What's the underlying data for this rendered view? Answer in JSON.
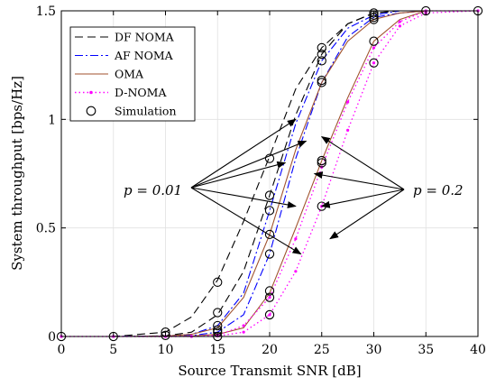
{
  "chart_data": {
    "type": "line",
    "xlabel": "Source Transmit SNR [dB]",
    "ylabel": "System throughput [bps/Hz]",
    "xlim": [
      0,
      40
    ],
    "ylim": [
      0,
      1.5
    ],
    "xticks": [
      0,
      5,
      10,
      15,
      20,
      25,
      30,
      35,
      40
    ],
    "yticks": [
      0,
      0.5,
      1,
      1.5
    ],
    "ytick_labels": [
      "0",
      "0.5",
      "1",
      "1.5"
    ],
    "grid": true,
    "legend_position": "top-left",
    "legend": [
      {
        "label": "DF NOMA",
        "style": "dashed",
        "color": "#000000"
      },
      {
        "label": "AF NOMA",
        "style": "dashdot",
        "color": "#0000ff"
      },
      {
        "label": "OMA",
        "style": "solid",
        "color": "#a0522d"
      },
      {
        "label": "D-NOMA",
        "style": "dotted",
        "color": "#ff00ff"
      },
      {
        "label": "Simulation",
        "style": "marker-circle",
        "color": "#000000"
      }
    ],
    "x": [
      0,
      5,
      10,
      12.5,
      15,
      17.5,
      20,
      22.5,
      25,
      27.5,
      30,
      32.5,
      35,
      40
    ],
    "series": [
      {
        "name": "DF NOMA",
        "group": "p = 0.01",
        "style": "dashed",
        "color": "#000000",
        "values": [
          0,
          0,
          0.02,
          0.09,
          0.26,
          0.53,
          0.83,
          1.14,
          1.33,
          1.44,
          1.49,
          1.5,
          1.5,
          1.5
        ]
      },
      {
        "name": "DF NOMA",
        "group": "p = 0.2",
        "style": "dashed",
        "color": "#000000",
        "values": [
          0,
          0,
          0.003,
          0.02,
          0.1,
          0.3,
          0.65,
          1.02,
          1.3,
          1.44,
          1.49,
          1.5,
          1.5,
          1.5
        ]
      },
      {
        "name": "AF NOMA",
        "group": "p = 0.01",
        "style": "dashdot",
        "color": "#0000ff",
        "values": [
          0,
          0,
          0.002,
          0.01,
          0.05,
          0.2,
          0.58,
          0.98,
          1.27,
          1.42,
          1.48,
          1.5,
          1.5,
          1.5
        ]
      },
      {
        "name": "AF NOMA",
        "group": "p = 0.2",
        "style": "dashdot",
        "color": "#0000ff",
        "values": [
          0,
          0,
          0.001,
          0.004,
          0.02,
          0.1,
          0.38,
          0.82,
          1.17,
          1.38,
          1.47,
          1.49,
          1.5,
          1.5
        ]
      },
      {
        "name": "OMA",
        "group": "p = 0.01",
        "style": "solid",
        "color": "#a0522d",
        "values": [
          0,
          0,
          0.002,
          0.01,
          0.04,
          0.18,
          0.47,
          0.86,
          1.17,
          1.36,
          1.46,
          1.49,
          1.5,
          1.5
        ]
      },
      {
        "name": "OMA",
        "group": "p = 0.2",
        "style": "solid",
        "color": "#a0522d",
        "values": [
          0,
          0,
          0,
          0.002,
          0.01,
          0.04,
          0.2,
          0.5,
          0.81,
          1.1,
          1.36,
          1.46,
          1.5,
          1.5
        ]
      },
      {
        "name": "D-NOMA",
        "group": "p = 0.01",
        "style": "dotted",
        "color": "#ff00ff",
        "values": [
          0,
          0,
          0,
          0.001,
          0.005,
          0.05,
          0.18,
          0.45,
          0.78,
          1.08,
          1.33,
          1.45,
          1.5,
          1.5
        ]
      },
      {
        "name": "D-NOMA",
        "group": "p = 0.2",
        "style": "dotted",
        "color": "#ff00ff",
        "values": [
          0,
          0,
          0,
          0,
          0.002,
          0.02,
          0.1,
          0.3,
          0.6,
          0.95,
          1.26,
          1.43,
          1.49,
          1.5
        ]
      }
    ],
    "simulation_points": [
      [
        0,
        0
      ],
      [
        5,
        0
      ],
      [
        10,
        0.02
      ],
      [
        10,
        0.005
      ],
      [
        15,
        0.25
      ],
      [
        15,
        0.11
      ],
      [
        15,
        0.05
      ],
      [
        15,
        0.03
      ],
      [
        15,
        0.02
      ],
      [
        15,
        0
      ],
      [
        20,
        0.82
      ],
      [
        20,
        0.65
      ],
      [
        20,
        0.58
      ],
      [
        20,
        0.47
      ],
      [
        20,
        0.38
      ],
      [
        20,
        0.21
      ],
      [
        20,
        0.18
      ],
      [
        20,
        0.1
      ],
      [
        25,
        1.33
      ],
      [
        25,
        1.3
      ],
      [
        25,
        1.27
      ],
      [
        25,
        1.18
      ],
      [
        25,
        1.17
      ],
      [
        25,
        0.81
      ],
      [
        25,
        0.8
      ],
      [
        25,
        0.6
      ],
      [
        30,
        1.49
      ],
      [
        30,
        1.48
      ],
      [
        30,
        1.47
      ],
      [
        30,
        1.46
      ],
      [
        30,
        1.36
      ],
      [
        30,
        1.26
      ],
      [
        35,
        1.5
      ],
      [
        40,
        1.5
      ]
    ],
    "annotations": [
      {
        "text": "p = 0.01",
        "targets": [
          [
            22.5,
            1.0
          ],
          [
            21.5,
            0.8
          ],
          [
            23.5,
            0.9
          ],
          [
            22.5,
            0.6
          ],
          [
            23,
            0.38
          ]
        ]
      },
      {
        "text": "p = 0.2",
        "targets": [
          [
            25,
            0.92
          ],
          [
            24.3,
            0.75
          ],
          [
            25,
            0.6
          ],
          [
            25.8,
            0.45
          ]
        ]
      }
    ]
  }
}
